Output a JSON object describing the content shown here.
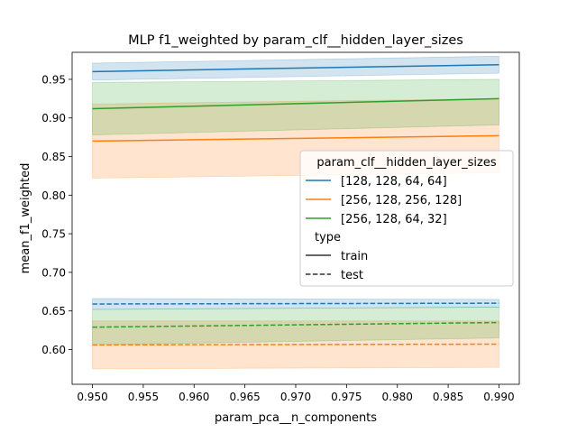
{
  "chart_data": {
    "type": "line",
    "title": "MLP f1_weighted by param_clf__hidden_layer_sizes",
    "xlabel": "param_pca__n_components",
    "ylabel": "mean_f1_weighted",
    "xlim": [
      0.948,
      0.992
    ],
    "ylim": [
      0.555,
      0.985
    ],
    "x_ticks": [
      0.95,
      0.955,
      0.96,
      0.965,
      0.97,
      0.975,
      0.98,
      0.985,
      0.99
    ],
    "x_tick_labels": [
      "0.950",
      "0.955",
      "0.960",
      "0.965",
      "0.970",
      "0.975",
      "0.980",
      "0.985",
      "0.990"
    ],
    "y_ticks": [
      0.6,
      0.65,
      0.7,
      0.75,
      0.8,
      0.85,
      0.9,
      0.95
    ],
    "y_tick_labels": [
      "0.60",
      "0.65",
      "0.70",
      "0.75",
      "0.80",
      "0.85",
      "0.90",
      "0.95"
    ],
    "grid": false,
    "legend": {
      "placement": "center-right",
      "hue_title": "param_clf__hidden_layer_sizes",
      "style_title": "type",
      "style_entries": [
        {
          "label": "train",
          "dash": "solid"
        },
        {
          "label": "test",
          "dash": "dashed"
        }
      ]
    },
    "series": [
      {
        "name": "[128, 128, 64, 64]",
        "type": "train",
        "color": "#1f77b4",
        "x": [
          0.95,
          0.99
        ],
        "y": [
          0.96,
          0.969
        ],
        "ci_low": [
          0.949,
          0.958
        ],
        "ci_high": [
          0.971,
          0.98
        ]
      },
      {
        "name": "[256, 128, 256, 128]",
        "type": "train",
        "color": "#ff7f0e",
        "x": [
          0.95,
          0.99
        ],
        "y": [
          0.87,
          0.877
        ],
        "ci_low": [
          0.822,
          0.829
        ],
        "ci_high": [
          0.918,
          0.925
        ]
      },
      {
        "name": "[256, 128, 64, 32]",
        "type": "train",
        "color": "#2ca02c",
        "x": [
          0.95,
          0.99
        ],
        "y": [
          0.912,
          0.925
        ],
        "ci_low": [
          0.878,
          0.891
        ],
        "ci_high": [
          0.946,
          0.95
        ]
      },
      {
        "name": "[128, 128, 64, 64]",
        "type": "test",
        "color": "#1f77b4",
        "x": [
          0.95,
          0.99
        ],
        "y": [
          0.659,
          0.66
        ],
        "ci_low": [
          0.652,
          0.655
        ],
        "ci_high": [
          0.666,
          0.665
        ]
      },
      {
        "name": "[256, 128, 256, 128]",
        "type": "test",
        "color": "#ff7f0e",
        "x": [
          0.95,
          0.99
        ],
        "y": [
          0.606,
          0.607
        ],
        "ci_low": [
          0.575,
          0.577
        ],
        "ci_high": [
          0.637,
          0.637
        ]
      },
      {
        "name": "[256, 128, 64, 32]",
        "type": "test",
        "color": "#2ca02c",
        "x": [
          0.95,
          0.99
        ],
        "y": [
          0.629,
          0.635
        ],
        "ci_low": [
          0.606,
          0.615
        ],
        "ci_high": [
          0.652,
          0.655
        ]
      }
    ]
  }
}
